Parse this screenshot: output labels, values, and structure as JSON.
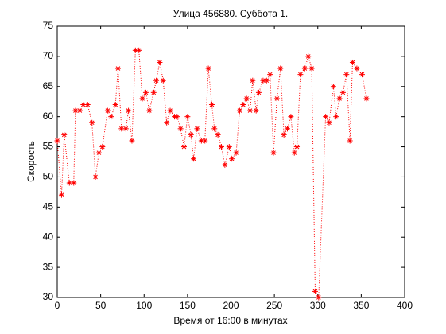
{
  "chart_data": {
    "type": "line",
    "title": "Улица 456880. Суббота 1.",
    "xlabel": "Время от 16:00 в минутах",
    "ylabel": "Скорость",
    "x": [
      0,
      5,
      8,
      14,
      19,
      21,
      26,
      30,
      35,
      40,
      44,
      48,
      52,
      58,
      62,
      67,
      70,
      74,
      79,
      82,
      86,
      90,
      94,
      98,
      102,
      106,
      111,
      114,
      118,
      122,
      126,
      130,
      135,
      138,
      142,
      146,
      150,
      154,
      157,
      161,
      166,
      170,
      174,
      178,
      181,
      185,
      189,
      193,
      198,
      201,
      206,
      210,
      214,
      218,
      222,
      225,
      229,
      232,
      237,
      241,
      245,
      249,
      253,
      257,
      261,
      265,
      269,
      273,
      276,
      280,
      285,
      289,
      293,
      297,
      301,
      309,
      313,
      318,
      321,
      325,
      329,
      333,
      337,
      340,
      345,
      351,
      356
    ],
    "series": [
      {
        "color": "#ff0000",
        "values": [
          56,
          47,
          57,
          49,
          49,
          61,
          61,
          62,
          62,
          59,
          50,
          54,
          55,
          61,
          60,
          62,
          68,
          58,
          58,
          61,
          56,
          71,
          71,
          63,
          64,
          61,
          64,
          66,
          69,
          66,
          59,
          61,
          60,
          60,
          58,
          55,
          60,
          57,
          53,
          58,
          56,
          56,
          68,
          62,
          58,
          57,
          55,
          52,
          55,
          53,
          54,
          61,
          62,
          63,
          61,
          66,
          61,
          64,
          66,
          66,
          67,
          54,
          63,
          68,
          57,
          58,
          60,
          54,
          55,
          67,
          68,
          70,
          68,
          31,
          30,
          60,
          59,
          65,
          60,
          63,
          64,
          67,
          56,
          69,
          68,
          67,
          63
        ]
      }
    ],
    "xlim": [
      0,
      400
    ],
    "xticks": [
      0,
      50,
      100,
      150,
      200,
      250,
      300,
      350,
      400
    ],
    "ylim": [
      30,
      75
    ],
    "yticks": [
      30,
      35,
      40,
      45,
      50,
      55,
      60,
      65,
      70,
      75
    ]
  }
}
